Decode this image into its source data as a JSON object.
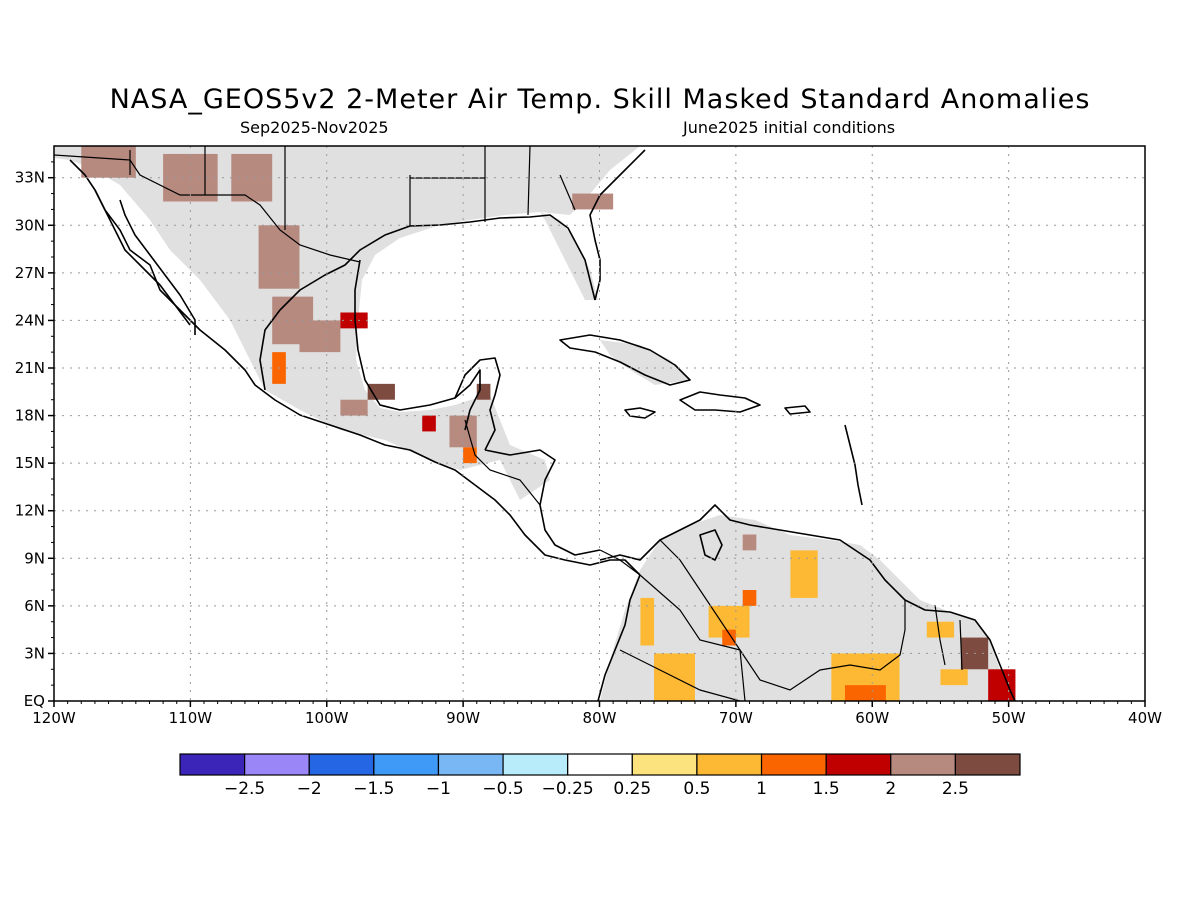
{
  "title": "NASA_GEOS5v2 2-Meter Air Temp. Skill Masked Standard Anomalies",
  "subtitle_left": "Sep2025-Nov2025",
  "subtitle_right": "June2025 initial conditions",
  "chart_data": {
    "type": "heatmap",
    "title": "NASA_GEOS5v2 2-Meter Air Temp. Skill Masked Standard Anomalies",
    "lon_range": [
      -120,
      -40
    ],
    "lat_range": [
      0,
      35
    ],
    "lon_ticks": [
      "120W",
      "110W",
      "100W",
      "90W",
      "80W",
      "70W",
      "60W",
      "50W",
      "40W"
    ],
    "lat_ticks": [
      "EQ",
      "3N",
      "6N",
      "9N",
      "12N",
      "15N",
      "18N",
      "21N",
      "24N",
      "27N",
      "30N",
      "33N"
    ],
    "grid": true,
    "colorbar": {
      "colors": [
        "#3b24b8",
        "#9a86f6",
        "#2466e3",
        "#3f99f6",
        "#78b7f4",
        "#b8ecfb",
        "#ffffff",
        "#fde37d",
        "#fdb934",
        "#fb6500",
        "#c00000",
        "#b78a80",
        "#7d4b3f"
      ],
      "labels": [
        "-2.5",
        "-2",
        "-1.5",
        "-1",
        "-0.5",
        "-0.25",
        "0.25",
        "0.5",
        "1",
        "1.5",
        "2",
        "2.5"
      ]
    },
    "categories_legend": {
      "gray": "skill masked",
      "white": "-0.25 to 0.25"
    },
    "anomaly_cells": [
      {
        "lon": -118,
        "lat": 34,
        "value": 2.2,
        "w": 4,
        "h": 2
      },
      {
        "lon": -112,
        "lat": 33,
        "value": 2.2,
        "w": 4,
        "h": 3
      },
      {
        "lon": -107,
        "lat": 33,
        "value": 2.2,
        "w": 3,
        "h": 3
      },
      {
        "lon": -105,
        "lat": 28,
        "value": 2.2,
        "w": 3,
        "h": 4
      },
      {
        "lon": -104,
        "lat": 24,
        "value": 2.2,
        "w": 3,
        "h": 3
      },
      {
        "lon": -102,
        "lat": 23,
        "value": 2.2,
        "w": 3,
        "h": 2
      },
      {
        "lon": -99,
        "lat": 24,
        "value": 1.6,
        "w": 2,
        "h": 1
      },
      {
        "lon": -104,
        "lat": 21,
        "value": 1.2,
        "w": 1,
        "h": 2
      },
      {
        "lon": -97,
        "lat": 19.5,
        "value": 2.6,
        "w": 2,
        "h": 1
      },
      {
        "lon": -99,
        "lat": 18.5,
        "value": 2.2,
        "w": 2,
        "h": 1
      },
      {
        "lon": -93,
        "lat": 17.5,
        "value": 1.6,
        "w": 1,
        "h": 1
      },
      {
        "lon": -91,
        "lat": 17,
        "value": 2.2,
        "w": 2,
        "h": 2
      },
      {
        "lon": -90,
        "lat": 15.5,
        "value": 1.2,
        "w": 1,
        "h": 1
      },
      {
        "lon": -89,
        "lat": 19.5,
        "value": 2.6,
        "w": 1,
        "h": 1
      },
      {
        "lon": -82,
        "lat": 31.5,
        "value": 2.2,
        "w": 3,
        "h": 1
      },
      {
        "lon": -77,
        "lat": 5,
        "value": 0.8,
        "w": 1,
        "h": 3
      },
      {
        "lon": -76,
        "lat": 1.5,
        "value": 0.8,
        "w": 3,
        "h": 3
      },
      {
        "lon": -72,
        "lat": 5,
        "value": 0.8,
        "w": 3,
        "h": 2
      },
      {
        "lon": -71,
        "lat": 4,
        "value": 1.2,
        "w": 1,
        "h": 1
      },
      {
        "lon": -69.5,
        "lat": 6.5,
        "value": 1.4,
        "w": 1,
        "h": 1
      },
      {
        "lon": -69.5,
        "lat": 10,
        "value": 2.2,
        "w": 1,
        "h": 1
      },
      {
        "lon": -66,
        "lat": 8,
        "value": 0.8,
        "w": 2,
        "h": 3
      },
      {
        "lon": -63,
        "lat": 1.5,
        "value": 0.9,
        "w": 5,
        "h": 3
      },
      {
        "lon": -62,
        "lat": 0.5,
        "value": 1.3,
        "w": 3,
        "h": 1
      },
      {
        "lon": -56,
        "lat": 4.5,
        "value": 0.6,
        "w": 2,
        "h": 1
      },
      {
        "lon": -53.5,
        "lat": 3,
        "value": 2.7,
        "w": 2,
        "h": 2
      },
      {
        "lon": -51.5,
        "lat": 1,
        "value": 1.6,
        "w": 2,
        "h": 2
      },
      {
        "lon": -55,
        "lat": 1.5,
        "value": 0.6,
        "w": 2,
        "h": 1
      }
    ]
  }
}
